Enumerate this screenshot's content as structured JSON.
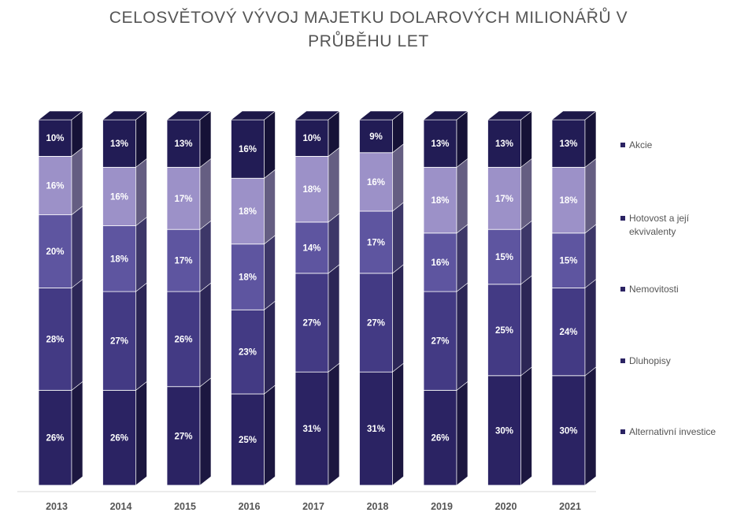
{
  "chart_data": {
    "type": "bar",
    "stacked": true,
    "style": "3d-stacked-column",
    "title_lines": [
      "CELOSVĚTOVÝ VÝVOJ MAJETKU DOLAROVÝCH MILIONÁŘŮ V",
      "PRŮBĚHU LET"
    ],
    "categories": [
      "2013",
      "2014",
      "2015",
      "2016",
      "2017",
      "2018",
      "2019",
      "2020",
      "2021"
    ],
    "series": [
      {
        "name": "Alternativní investice",
        "color": "#2b2363",
        "values": [
          26,
          26,
          27,
          25,
          31,
          31,
          26,
          30,
          30
        ],
        "labels": [
          "26%",
          "26%",
          "27%",
          "25%",
          "31%",
          "31%",
          "26%",
          "30%",
          "30%"
        ]
      },
      {
        "name": "Dluhopisy",
        "color": "#433a84",
        "values": [
          28,
          27,
          26,
          23,
          27,
          27,
          27,
          25,
          24
        ],
        "labels": [
          "28%",
          "27%",
          "26%",
          "23%",
          "27%",
          "27%",
          "27%",
          "25%",
          "24%"
        ]
      },
      {
        "name": "Nemovitosti",
        "color": "#5e55a0",
        "values": [
          20,
          18,
          17,
          18,
          14,
          17,
          16,
          15,
          15
        ],
        "labels": [
          "20%",
          "18%",
          "17%",
          "18%",
          "14%",
          "17%",
          "16%",
          "15%",
          "15%"
        ]
      },
      {
        "name": "Hotovost a její ekvivalenty",
        "color": "#9c91c8",
        "values": [
          16,
          16,
          17,
          18,
          18,
          16,
          18,
          17,
          18
        ],
        "labels": [
          "16%",
          "16%",
          "17%",
          "18%",
          "18%",
          "16%",
          "18%",
          "17%",
          "18%"
        ]
      },
      {
        "name": "Akcie",
        "color": "#221c55",
        "values": [
          10,
          13,
          13,
          16,
          10,
          9,
          13,
          13,
          13
        ],
        "labels": [
          "10%",
          "13%",
          "13%",
          "16%",
          "10%",
          "9%",
          "13%",
          "13%",
          "13%"
        ]
      }
    ],
    "legend": {
      "position": "right",
      "order": [
        "Akcie",
        "Hotovost a její ekvivalenty",
        "Nemovitosti",
        "Dluhopisy",
        "Alternativní investice"
      ],
      "wrapped_lines": {
        "Hotovost a její ekvivalenty": [
          "Hotovost a její",
          "ekvivalenty"
        ]
      },
      "marker_color": "#2b2363"
    },
    "grid": false,
    "ylim": [
      0,
      100
    ]
  }
}
